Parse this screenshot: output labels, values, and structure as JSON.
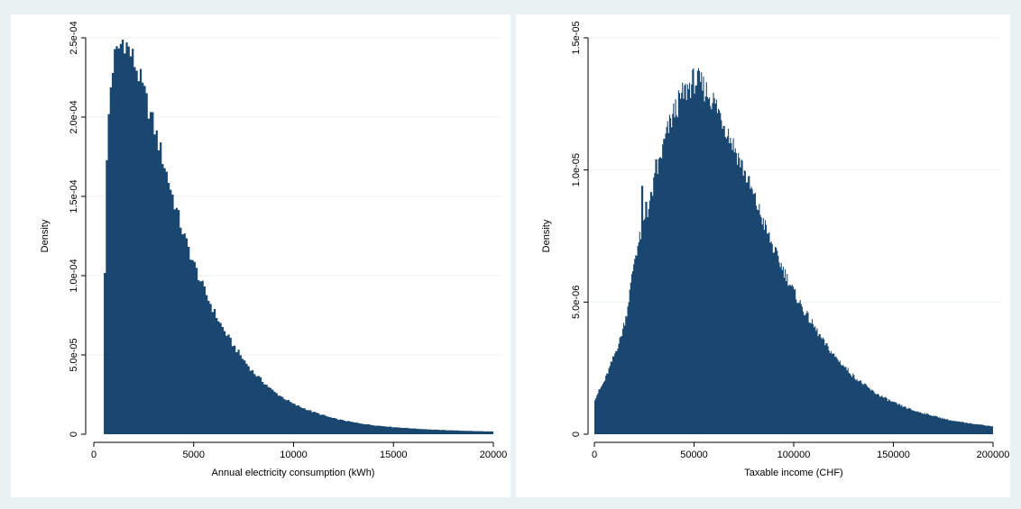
{
  "chart_data": [
    {
      "type": "histogram",
      "xlabel": "Annual electricity consumption (kWh)",
      "ylabel": "Density",
      "xlim": [
        0,
        20000
      ],
      "ylim": [
        0,
        0.00025
      ],
      "xticks": [
        0,
        5000,
        10000,
        15000,
        20000
      ],
      "xtick_labels": [
        "0",
        "5000",
        "10000",
        "15000",
        "20000"
      ],
      "yticks": [
        0,
        5e-05,
        0.0001,
        0.00015,
        0.0002,
        0.00025
      ],
      "ytick_labels": [
        "0",
        "5.0e-05",
        "1.0e-04",
        "1.5e-04",
        "2.0e-04",
        "2.5e-04"
      ],
      "grid": true,
      "bar_color": "#1a476f",
      "bin_width": 100,
      "bins_start": 500,
      "bins_end": 20000,
      "density_profile": [
        [
          500,
          0.0
        ],
        [
          510,
          0.000104
        ],
        [
          600,
          0.00015
        ],
        [
          700,
          0.00019
        ],
        [
          800,
          0.000212
        ],
        [
          900,
          0.000227
        ],
        [
          1000,
          0.000236
        ],
        [
          1200,
          0.000242
        ],
        [
          1400,
          0.000247
        ],
        [
          1500,
          0.00025
        ],
        [
          1700,
          0.000244
        ],
        [
          2000,
          0.000236
        ],
        [
          2300,
          0.000225
        ],
        [
          2600,
          0.000212
        ],
        [
          3000,
          0.000195
        ],
        [
          3500,
          0.000172
        ],
        [
          4000,
          0.000148
        ],
        [
          4500,
          0.000126
        ],
        [
          5000,
          0.000108
        ],
        [
          5500,
          9.2e-05
        ],
        [
          6000,
          7.8e-05
        ],
        [
          6500,
          6.6e-05
        ],
        [
          7000,
          5.6e-05
        ],
        [
          7500,
          4.7e-05
        ],
        [
          8000,
          3.9e-05
        ],
        [
          8500,
          3.3e-05
        ],
        [
          9000,
          2.7e-05
        ],
        [
          9500,
          2.3e-05
        ],
        [
          10000,
          1.9e-05
        ],
        [
          11000,
          1.4e-05
        ],
        [
          12000,
          1e-05
        ],
        [
          13000,
          7.5e-06
        ],
        [
          14000,
          5.7e-06
        ],
        [
          15000,
          4.5e-06
        ],
        [
          16000,
          3.6e-06
        ],
        [
          17000,
          2.9e-06
        ],
        [
          18000,
          2.4e-06
        ],
        [
          19000,
          2e-06
        ],
        [
          20000,
          1.7e-06
        ]
      ]
    },
    {
      "type": "histogram",
      "xlabel": "Taxable income (CHF)",
      "ylabel": "Density",
      "xlim": [
        0,
        200000
      ],
      "ylim": [
        0,
        1.5e-05
      ],
      "xticks": [
        0,
        50000,
        100000,
        150000,
        200000
      ],
      "xtick_labels": [
        "0",
        "50000",
        "100000",
        "150000",
        "200000"
      ],
      "yticks": [
        0,
        5e-06,
        1e-05,
        1.5e-05
      ],
      "ytick_labels": [
        "0",
        "5.0e-06",
        "1.0e-05",
        "1.5e-05"
      ],
      "grid": true,
      "bar_color": "#1a476f",
      "bin_width": 500,
      "bins_start": 0,
      "bins_end": 200000,
      "density_profile": [
        [
          0,
          1.3e-06
        ],
        [
          2000,
          1.6e-06
        ],
        [
          5000,
          2e-06
        ],
        [
          8000,
          2.6e-06
        ],
        [
          10000,
          3e-06
        ],
        [
          13000,
          3.6e-06
        ],
        [
          16000,
          4.5e-06
        ],
        [
          18000,
          5.5e-06
        ],
        [
          20000,
          6.6e-06
        ],
        [
          22000,
          7.2e-06
        ],
        [
          25000,
          8e-06
        ],
        [
          28000,
          8.8e-06
        ],
        [
          30000,
          9.5e-06
        ],
        [
          33000,
          1.04e-05
        ],
        [
          36000,
          1.13e-05
        ],
        [
          40000,
          1.22e-05
        ],
        [
          44000,
          1.28e-05
        ],
        [
          48000,
          1.32e-05
        ],
        [
          50000,
          1.34e-05
        ],
        [
          53000,
          1.33e-05
        ],
        [
          56000,
          1.3e-05
        ],
        [
          60000,
          1.26e-05
        ],
        [
          65000,
          1.18e-05
        ],
        [
          70000,
          1.09e-05
        ],
        [
          75000,
          1e-05
        ],
        [
          80000,
          9e-06
        ],
        [
          85000,
          8e-06
        ],
        [
          90000,
          7e-06
        ],
        [
          95000,
          6.2e-06
        ],
        [
          100000,
          5.4e-06
        ],
        [
          105000,
          4.7e-06
        ],
        [
          110000,
          4.1e-06
        ],
        [
          115000,
          3.5e-06
        ],
        [
          120000,
          3e-06
        ],
        [
          125000,
          2.6e-06
        ],
        [
          130000,
          2.2e-06
        ],
        [
          140000,
          1.6e-06
        ],
        [
          150000,
          1.2e-06
        ],
        [
          160000,
          9e-07
        ],
        [
          170000,
          7e-07
        ],
        [
          180000,
          5e-07
        ],
        [
          190000,
          4e-07
        ],
        [
          200000,
          3e-07
        ]
      ],
      "spikes": [
        [
          24000,
          9.4e-06
        ],
        [
          26000,
          8.8e-06
        ],
        [
          31000,
          1.04e-05
        ]
      ]
    }
  ]
}
